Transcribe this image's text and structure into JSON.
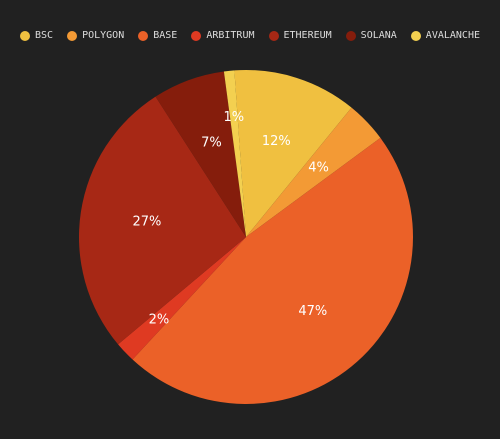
{
  "chart_data": {
    "type": "pie",
    "categories": [
      "BSC",
      "POLYGON",
      "BASE",
      "ARBITRUM",
      "ETHEREUM",
      "SOLANA",
      "AVALANCHE"
    ],
    "values": [
      12,
      4,
      47,
      2,
      27,
      7,
      1
    ],
    "labels": [
      "12%",
      "4%",
      "47%",
      "2%",
      "27%",
      "7%",
      "1%"
    ],
    "colors": [
      "#F0C040",
      "#F39A35",
      "#EB6128",
      "#DF3A22",
      "#A72815",
      "#851D0C",
      "#F3D050"
    ],
    "legend_position": "top"
  }
}
